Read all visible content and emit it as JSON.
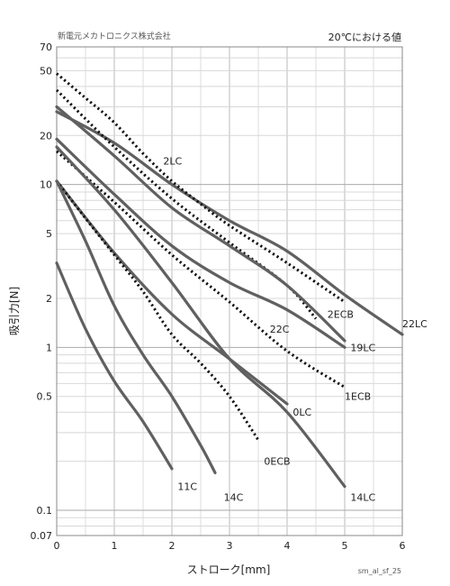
{
  "header": {
    "company": "新電元メカトロニクス株式会社",
    "condition": "20℃における値"
  },
  "footer": {
    "code": "sm_al_sf_25"
  },
  "chart_data": {
    "type": "line",
    "xlabel": "ストローク[mm]",
    "ylabel": "吸引力[N]",
    "xlim": [
      0,
      6
    ],
    "ylim": [
      0.07,
      70
    ],
    "yscale": "log",
    "grid": true,
    "x_ticks": [
      "0",
      "1",
      "2",
      "3",
      "4",
      "5",
      "6"
    ],
    "x_tick_values": [
      0,
      1,
      2,
      3,
      4,
      5,
      6
    ],
    "y_ticks": [
      "0.07",
      "0.1",
      "0.5",
      "1",
      "2",
      "5",
      "10",
      "20",
      "50",
      "70"
    ],
    "y_tick_values": [
      0.07,
      0.1,
      0.5,
      1,
      2,
      5,
      10,
      20,
      50,
      70
    ],
    "series": [
      {
        "name": "22LC",
        "style": "solid",
        "x": [
          0,
          1,
          2,
          3,
          4,
          5,
          6
        ],
        "y": [
          28,
          18,
          10,
          6,
          3.9,
          2.1,
          1.2
        ],
        "label_x": 6,
        "label_y": 1.4
      },
      {
        "name": "2LC",
        "style": "dotted",
        "x": [
          0,
          0.5,
          1,
          1.5,
          2,
          2.5,
          3,
          4,
          5
        ],
        "y": [
          48,
          34,
          24,
          15.5,
          10.5,
          7.6,
          5.6,
          3.3,
          1.9
        ],
        "label_x": 1.85,
        "label_y": 14
      },
      {
        "name": "2ECB",
        "style": "dotted",
        "x": [
          0,
          1,
          2,
          3,
          4,
          4.5
        ],
        "y": [
          38,
          17,
          8.2,
          4.4,
          2.4,
          1.5
        ],
        "label_x": 4.7,
        "label_y": 1.6
      },
      {
        "name": "19LC",
        "style": "solid",
        "x": [
          0,
          1,
          2,
          3,
          4,
          5
        ],
        "y": [
          30,
          15,
          7.2,
          4.2,
          2.4,
          1.1
        ],
        "label_x": 5.1,
        "label_y": 1.0
      },
      {
        "name": "22C",
        "style": "solid",
        "x": [
          0,
          1,
          2,
          3,
          4,
          5
        ],
        "y": [
          19,
          8.7,
          4.2,
          2.5,
          1.7,
          1.0
        ],
        "label_x": 3.7,
        "label_y": 1.3
      },
      {
        "name": "1ECB",
        "style": "dotted",
        "x": [
          0,
          1,
          2,
          3,
          4,
          5
        ],
        "y": [
          16,
          7.8,
          3.7,
          1.9,
          0.95,
          0.57
        ],
        "label_x": 5.0,
        "label_y": 0.5
      },
      {
        "name": "0LC",
        "style": "solid",
        "x": [
          0,
          1,
          2,
          3,
          4
        ],
        "y": [
          10.5,
          3.8,
          1.6,
          0.85,
          0.45
        ],
        "label_x": 4.1,
        "label_y": 0.4
      },
      {
        "name": "14LC",
        "style": "solid",
        "x": [
          0,
          1,
          2,
          3,
          4,
          5
        ],
        "y": [
          17,
          7.0,
          2.5,
          0.85,
          0.4,
          0.14
        ],
        "label_x": 5.1,
        "label_y": 0.12
      },
      {
        "name": "0ECB",
        "style": "dotted",
        "x": [
          0,
          0.5,
          1,
          1.5,
          2,
          2.5,
          3,
          3.5
        ],
        "y": [
          10.5,
          6.2,
          3.7,
          2.2,
          1.2,
          0.8,
          0.5,
          0.27
        ],
        "label_x": 3.6,
        "label_y": 0.2
      },
      {
        "name": "14C",
        "style": "solid",
        "x": [
          0,
          0.5,
          1,
          1.5,
          2,
          2.5,
          2.75
        ],
        "y": [
          10.5,
          4.5,
          1.8,
          0.9,
          0.5,
          0.25,
          0.17
        ],
        "label_x": 2.9,
        "label_y": 0.12
      },
      {
        "name": "11C",
        "style": "solid",
        "x": [
          0,
          0.5,
          1,
          1.5,
          2
        ],
        "y": [
          3.3,
          1.3,
          0.62,
          0.35,
          0.18
        ],
        "label_x": 2.1,
        "label_y": 0.14
      }
    ]
  }
}
